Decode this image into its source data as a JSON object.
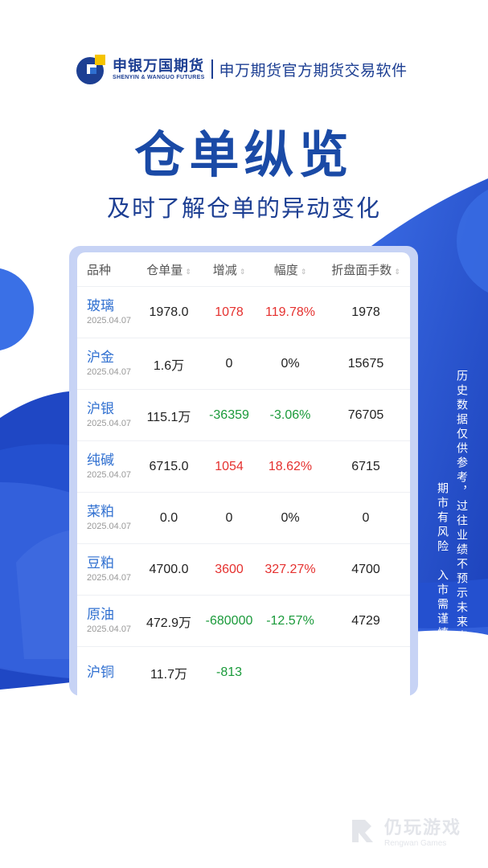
{
  "header": {
    "brand_cn": "申银万国期货",
    "brand_en": "SHENYIN & WANGUO FUTURES",
    "slogan": "申万期货官方期货交易软件"
  },
  "title": "仓单纵览",
  "subtitle": "及时了解仓单的异动变化",
  "table": {
    "headers": [
      "品种",
      "仓单量",
      "增减",
      "幅度",
      "折盘面手数"
    ],
    "rows": [
      {
        "name": "玻璃",
        "date": "2025.04.07",
        "qty": "1978.0",
        "chg": "1078",
        "pct": "119.78%",
        "lots": "1978",
        "dir": "up"
      },
      {
        "name": "沪金",
        "date": "2025.04.07",
        "qty": "1.6万",
        "chg": "0",
        "pct": "0%",
        "lots": "15675",
        "dir": "flat"
      },
      {
        "name": "沪银",
        "date": "2025.04.07",
        "qty": "115.1万",
        "chg": "-36359",
        "pct": "-3.06%",
        "lots": "76705",
        "dir": "down"
      },
      {
        "name": "纯碱",
        "date": "2025.04.07",
        "qty": "6715.0",
        "chg": "1054",
        "pct": "18.62%",
        "lots": "6715",
        "dir": "up"
      },
      {
        "name": "菜粕",
        "date": "2025.04.07",
        "qty": "0.0",
        "chg": "0",
        "pct": "0%",
        "lots": "0",
        "dir": "flat"
      },
      {
        "name": "豆粕",
        "date": "2025.04.07",
        "qty": "4700.0",
        "chg": "3600",
        "pct": "327.27%",
        "lots": "4700",
        "dir": "up"
      },
      {
        "name": "原油",
        "date": "2025.04.07",
        "qty": "472.9万",
        "chg": "-680000",
        "pct": "-12.57%",
        "lots": "4729",
        "dir": "down"
      },
      {
        "name": "沪铜",
        "date": "",
        "qty": "11.7万",
        "chg": "-813",
        "pct": "",
        "lots": "",
        "dir": "down"
      }
    ]
  },
  "disclaimer": {
    "line1": "历史数据仅供参考，过往业绩不预示未来表现",
    "line2": "期市有风险　入市需谨慎"
  },
  "watermark": {
    "cn": "仍玩游戏",
    "en": "Rengwan Games"
  },
  "colors": {
    "brand": "#1d3f93",
    "accent": "#2a5ad6",
    "up": "#e5312f",
    "down": "#1a9a3a"
  }
}
